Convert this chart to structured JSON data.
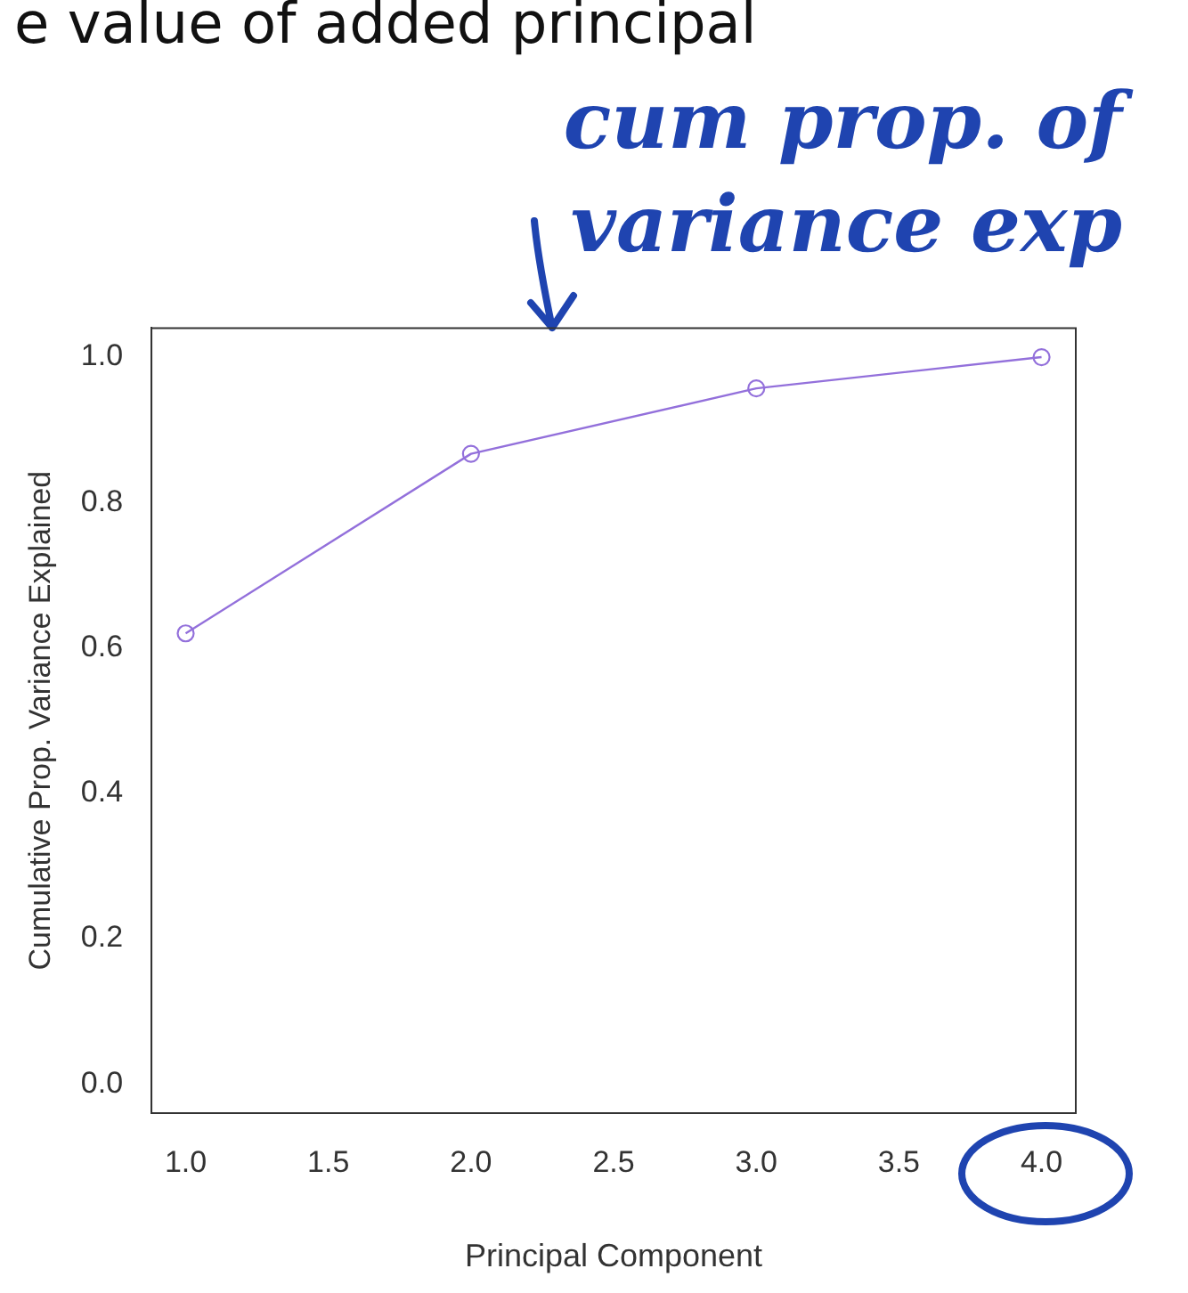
{
  "chart_data": {
    "type": "line",
    "xlabel": "Principal Component",
    "ylabel": "Cumulative Prop. Variance Explained",
    "x": [
      1,
      2,
      3,
      4
    ],
    "series": [
      {
        "color": "#9370db",
        "values": [
          0.62,
          0.867,
          0.957,
          1.0
        ]
      }
    ],
    "xlim": [
      0.88,
      4.12
    ],
    "xticks": [
      {
        "value": 1,
        "label": "1.0"
      },
      {
        "value": 1.5,
        "label": "1.5"
      },
      {
        "value": 2,
        "label": "2.0"
      },
      {
        "value": 2.5,
        "label": "2.5"
      },
      {
        "value": 3,
        "label": "3.0"
      },
      {
        "value": 3.5,
        "label": "3.5"
      },
      {
        "value": 4,
        "label": "4.0"
      }
    ],
    "ylim": [
      -0.04,
      1.04
    ],
    "yticks": [
      {
        "value": 0,
        "label": "0.0"
      },
      {
        "value": 0.2,
        "label": "0.2"
      },
      {
        "value": 0.4,
        "label": "0.4"
      },
      {
        "value": 0.6,
        "label": "0.6"
      },
      {
        "value": 0.8,
        "label": "0.8"
      },
      {
        "value": 1,
        "label": "1.0"
      }
    ],
    "grid": false,
    "legend": false,
    "marker": "circle",
    "line_style": "solid",
    "annotations": [
      "e value of added principal",
      "cum prop. of variance exp"
    ]
  }
}
